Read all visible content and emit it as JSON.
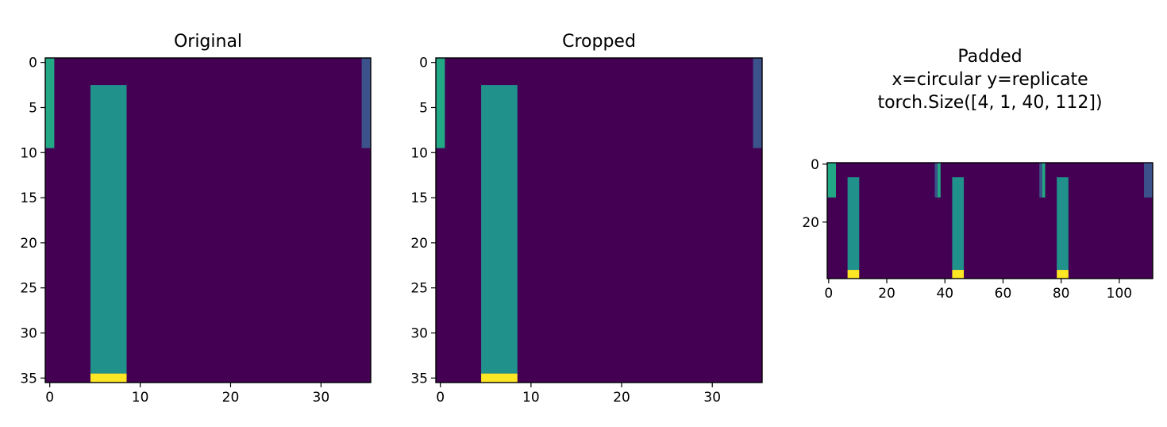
{
  "palette": {
    "background": "#440154",
    "teal": "#21918c",
    "green": "#22a884",
    "blue": "#3b528b",
    "yellow": "#fde725"
  },
  "chart_data": [
    {
      "type": "heatmap",
      "title": [
        "Original"
      ],
      "width": 36,
      "height": 36,
      "xlim": [
        -0.5,
        35.5
      ],
      "ylim": [
        35.5,
        -0.5
      ],
      "xticks": [
        0,
        10,
        20,
        30
      ],
      "yticks": [
        0,
        5,
        10,
        15,
        20,
        25,
        30,
        35
      ],
      "background": "#440154",
      "cells": [
        {
          "x": [
            0,
            0
          ],
          "y": [
            0,
            9
          ],
          "color": "#22a884"
        },
        {
          "x": [
            5,
            8
          ],
          "y": [
            3,
            34
          ],
          "color": "#21918c"
        },
        {
          "x": [
            5,
            8
          ],
          "y": [
            35,
            35
          ],
          "color": "#fde725"
        },
        {
          "x": [
            35,
            35
          ],
          "y": [
            0,
            9
          ],
          "color": "#3b528b"
        }
      ]
    },
    {
      "type": "heatmap",
      "title": [
        "Cropped"
      ],
      "width": 36,
      "height": 36,
      "xlim": [
        -0.5,
        35.5
      ],
      "ylim": [
        35.5,
        -0.5
      ],
      "xticks": [
        0,
        10,
        20,
        30
      ],
      "yticks": [
        0,
        5,
        10,
        15,
        20,
        25,
        30,
        35
      ],
      "background": "#440154",
      "cells": [
        {
          "x": [
            0,
            0
          ],
          "y": [
            0,
            9
          ],
          "color": "#22a884"
        },
        {
          "x": [
            5,
            8
          ],
          "y": [
            3,
            34
          ],
          "color": "#21918c"
        },
        {
          "x": [
            5,
            8
          ],
          "y": [
            35,
            35
          ],
          "color": "#fde725"
        },
        {
          "x": [
            35,
            35
          ],
          "y": [
            0,
            9
          ],
          "color": "#3b528b"
        }
      ]
    },
    {
      "type": "heatmap",
      "title": [
        "Padded",
        "x=circular y=replicate",
        "torch.Size([4, 1, 40, 112])"
      ],
      "width": 112,
      "height": 40,
      "xlim": [
        -0.5,
        111.5
      ],
      "ylim": [
        39.5,
        -0.5
      ],
      "xticks": [
        0,
        20,
        40,
        60,
        80,
        100
      ],
      "yticks": [
        0,
        20
      ],
      "background": "#440154",
      "cells": [
        {
          "x": [
            0,
            2
          ],
          "y": [
            0,
            11
          ],
          "color": "#22a884"
        },
        {
          "x": [
            7,
            10
          ],
          "y": [
            5,
            36
          ],
          "color": "#21918c"
        },
        {
          "x": [
            7,
            10
          ],
          "y": [
            37,
            39
          ],
          "color": "#fde725"
        },
        {
          "x": [
            37,
            37
          ],
          "y": [
            0,
            11
          ],
          "color": "#3b528b"
        },
        {
          "x": [
            38,
            38
          ],
          "y": [
            0,
            11
          ],
          "color": "#22a884"
        },
        {
          "x": [
            43,
            46
          ],
          "y": [
            5,
            36
          ],
          "color": "#21918c"
        },
        {
          "x": [
            43,
            46
          ],
          "y": [
            37,
            39
          ],
          "color": "#fde725"
        },
        {
          "x": [
            73,
            73
          ],
          "y": [
            0,
            11
          ],
          "color": "#3b528b"
        },
        {
          "x": [
            74,
            74
          ],
          "y": [
            0,
            11
          ],
          "color": "#22a884"
        },
        {
          "x": [
            79,
            82
          ],
          "y": [
            5,
            36
          ],
          "color": "#21918c"
        },
        {
          "x": [
            79,
            82
          ],
          "y": [
            37,
            39
          ],
          "color": "#fde725"
        },
        {
          "x": [
            109,
            111
          ],
          "y": [
            0,
            11
          ],
          "color": "#3b528b"
        }
      ]
    }
  ]
}
